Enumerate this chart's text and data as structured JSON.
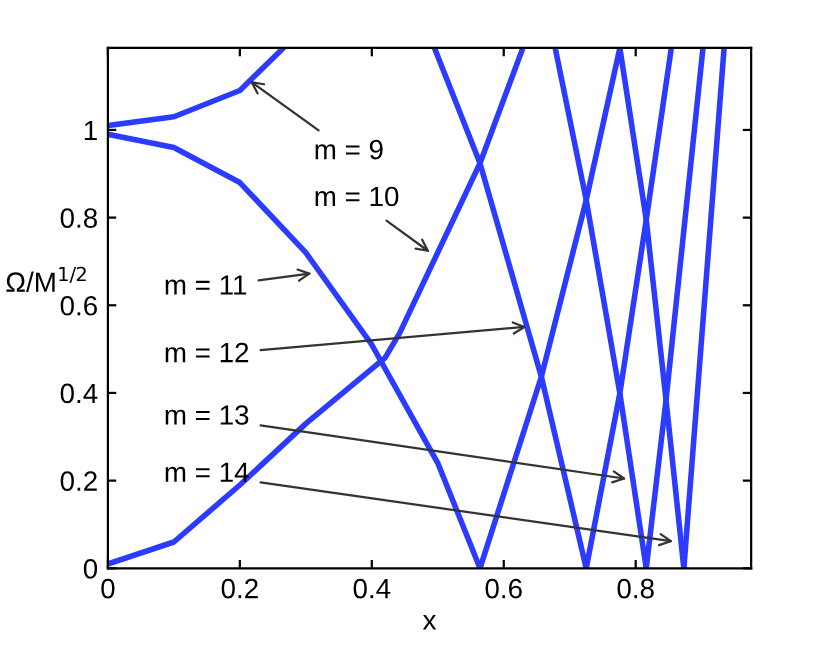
{
  "chart_data": {
    "type": "line",
    "xlabel": "x",
    "ylabel": "Ω/M$^{1/2}$",
    "xlim": [
      0,
      0.975
    ],
    "ylim": [
      0,
      1.187
    ],
    "xticks": [
      0,
      0.2,
      0.4,
      0.6,
      0.8
    ],
    "yticks": [
      0,
      0.2,
      0.4,
      0.6,
      0.8,
      1
    ],
    "grid": false,
    "marker": "none",
    "line_style": "solid",
    "series": [
      {
        "color": "#2b3bff",
        "x": [
          0,
          0.1,
          0.2,
          0.266
        ],
        "values": [
          1.01,
          1.03,
          1.09,
          1.187
        ]
      },
      {
        "color": "#2b3bff",
        "x": [
          0,
          0.1,
          0.2,
          0.3,
          0.4,
          0.5,
          0.564
        ],
        "values": [
          0.99,
          0.96,
          0.88,
          0.72,
          0.51,
          0.24,
          0
        ]
      },
      {
        "color": "#2b3bff",
        "x": [
          0,
          0.1,
          0.2,
          0.3,
          0.42,
          0.442,
          0.564,
          0.629
        ],
        "values": [
          0.01,
          0.06,
          0.19,
          0.33,
          0.48,
          0.536,
          0.924,
          1.187
        ]
      },
      {
        "color": "#2b3bff",
        "x": [
          0.495,
          0.564,
          0.657,
          0.725
        ],
        "values": [
          1.187,
          0.924,
          0.437,
          0
        ]
      },
      {
        "color": "#2b3bff",
        "x": [
          0.564,
          0.657,
          0.725,
          0.776
        ],
        "values": [
          0,
          0.437,
          0.84,
          1.187
        ]
      },
      {
        "color": "#2b3bff",
        "x": [
          0.678,
          0.725,
          0.776,
          0.816
        ],
        "values": [
          1.187,
          0.84,
          0.399,
          0
        ]
      },
      {
        "color": "#2b3bff",
        "x": [
          0.725,
          0.776,
          0.816,
          0.854
        ],
        "values": [
          0,
          0.399,
          0.795,
          1.187
        ]
      },
      {
        "color": "#2b3bff",
        "x": [
          0.776,
          0.816,
          0.846,
          0.873
        ],
        "values": [
          1.187,
          0.795,
          0.384,
          0
        ]
      },
      {
        "color": "#2b3bff",
        "x": [
          0.816,
          0.846,
          0.902
        ],
        "values": [
          0,
          0.384,
          1.187
        ]
      },
      {
        "color": "#2b3bff",
        "x": [
          0.873,
          0.934
        ],
        "values": [
          0,
          1.187
        ]
      }
    ],
    "annotations": [
      {
        "text": "m = 9",
        "x": 0.215,
        "y": 1.112
      },
      {
        "text": "m = 10",
        "x": 0.488,
        "y": 0.721
      },
      {
        "text": "m = 11",
        "x": 0.309,
        "y": 0.673
      },
      {
        "text": "m = 12",
        "x": 0.635,
        "y": 0.551
      },
      {
        "text": "m = 13",
        "x": 0.786,
        "y": 0.204
      },
      {
        "text": "m = 14",
        "x": 0.857,
        "y": 0.061
      }
    ]
  }
}
